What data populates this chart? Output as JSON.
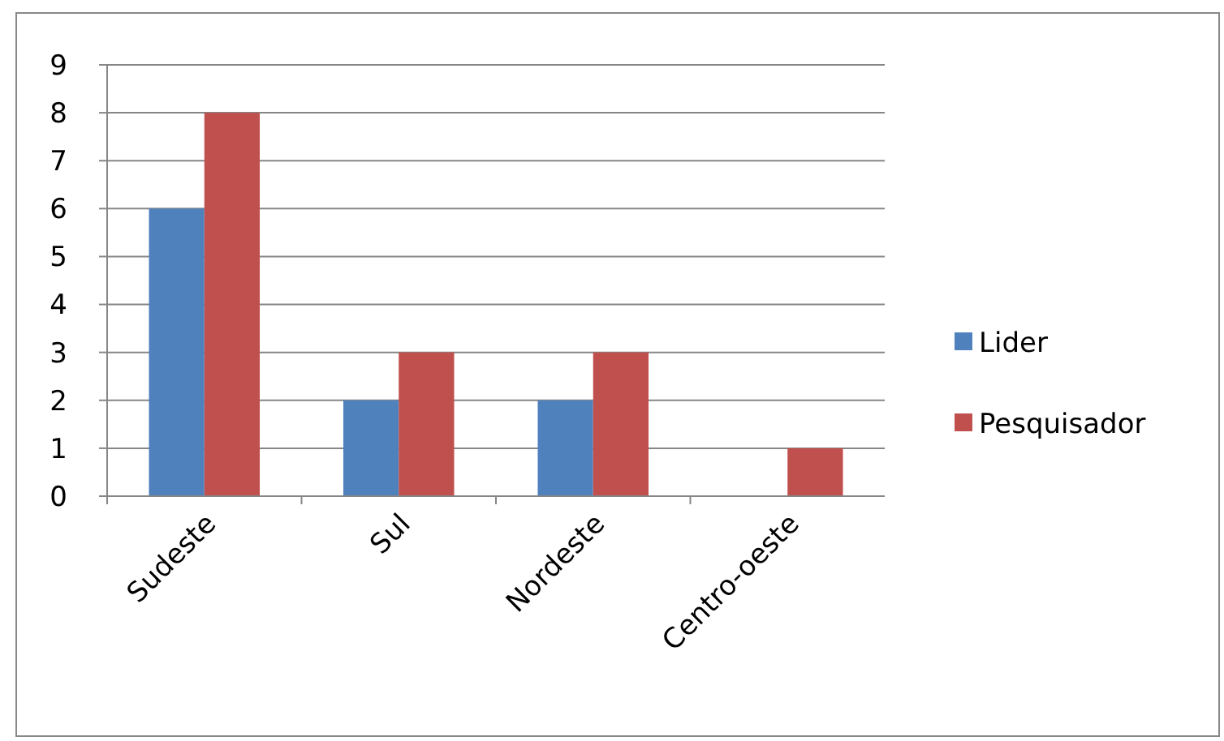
{
  "chart_data": {
    "type": "bar",
    "categories": [
      "Sudeste",
      "Sul",
      "Nordeste",
      "Centro-oeste"
    ],
    "series": [
      {
        "name": "Lider",
        "color": "#4f81bd",
        "values": [
          6,
          2,
          2,
          0
        ]
      },
      {
        "name": "Pesquisador",
        "color": "#c0504d",
        "values": [
          8,
          3,
          3,
          1
        ]
      }
    ],
    "ylim": [
      0,
      9
    ],
    "yticks": [
      0,
      1,
      2,
      3,
      4,
      5,
      6,
      7,
      8,
      9
    ],
    "grid": "y",
    "legend": "right"
  }
}
